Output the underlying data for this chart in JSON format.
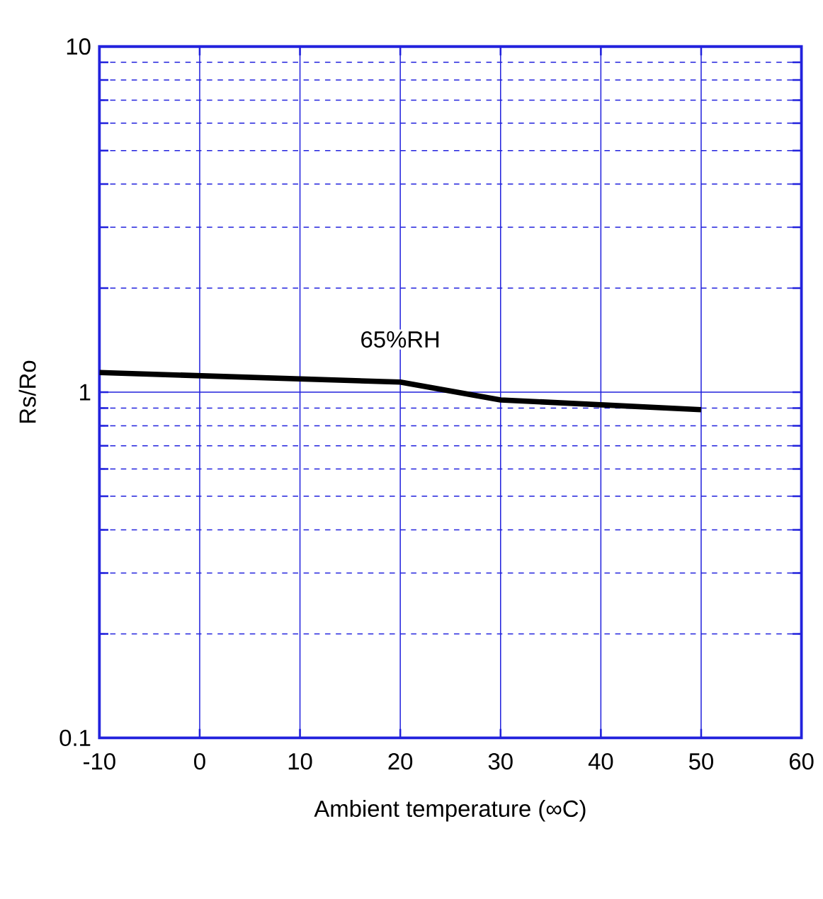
{
  "chart_data": {
    "type": "line",
    "xlabel": "Ambient temperature (∞C)",
    "ylabel": "Rs/Ro",
    "log": "y",
    "grid": true,
    "marker": "none",
    "line_style": "solid",
    "x": [
      -10,
      20,
      30,
      50
    ],
    "series": [
      {
        "name": "65%RH",
        "color": "#000000",
        "values": [
          1.14,
          1.07,
          0.95,
          0.89
        ]
      }
    ],
    "xlim": [
      -10,
      60
    ],
    "xticks": [
      -10,
      0,
      10,
      20,
      30,
      40,
      50,
      60
    ],
    "ylim": [
      0.1,
      10
    ],
    "yticks": [
      0.1,
      {
        "value": 0.2,
        "label": null
      },
      {
        "value": 0.3,
        "label": null
      },
      {
        "value": 0.4,
        "label": null
      },
      {
        "value": 0.5,
        "label": null
      },
      {
        "value": 0.6,
        "label": null
      },
      {
        "value": 0.7,
        "label": null
      },
      {
        "value": 0.8,
        "label": null
      },
      {
        "value": 0.9,
        "label": null
      },
      1,
      {
        "value": 2,
        "label": null
      },
      {
        "value": 3,
        "label": null
      },
      {
        "value": 4,
        "label": null
      },
      {
        "value": 5,
        "label": null
      },
      {
        "value": 6,
        "label": null
      },
      {
        "value": 7,
        "label": null
      },
      {
        "value": 8,
        "label": null
      },
      {
        "value": 9,
        "label": null
      },
      10
    ]
  }
}
